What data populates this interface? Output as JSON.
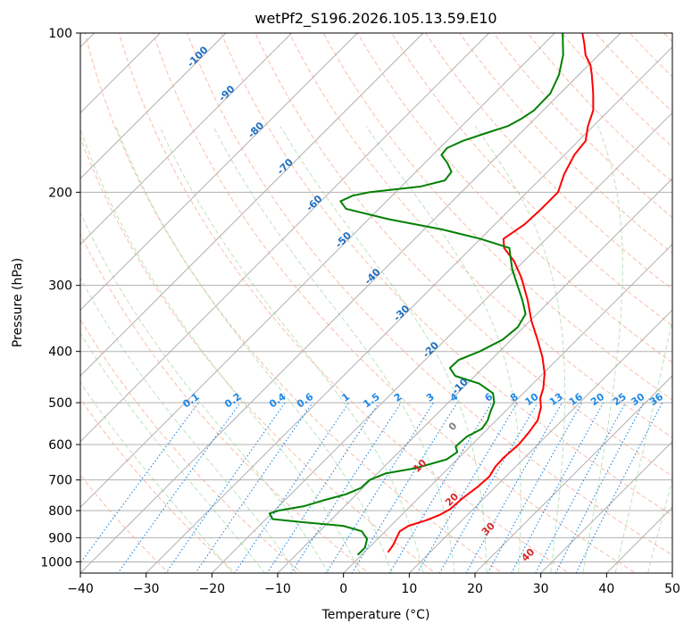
{
  "chart_data": {
    "type": "line",
    "subtype": "skew-t-log-p",
    "title": "wetPf2_S196.2026.105.13.59.E10",
    "xlabel": "Temperature (°C)",
    "ylabel": "Pressure (hPa)",
    "xlim": [
      -40,
      50
    ],
    "ylim_hPa": [
      1050,
      100
    ],
    "x_ticks": [
      -40,
      -30,
      -20,
      -10,
      0,
      10,
      20,
      30,
      40,
      50
    ],
    "y_ticks": [
      100,
      200,
      300,
      400,
      500,
      600,
      700,
      800,
      900,
      1000
    ],
    "series": [
      {
        "name": "Temperature",
        "color": "#ff0000",
        "points": [
          {
            "p": 959,
            "t": 3.6
          },
          {
            "p": 930,
            "t": 3.3
          },
          {
            "p": 900,
            "t": 2.7
          },
          {
            "p": 875,
            "t": 2.2
          },
          {
            "p": 855,
            "t": 2.7
          },
          {
            "p": 835,
            "t": 4.5
          },
          {
            "p": 815,
            "t": 5.8
          },
          {
            "p": 795,
            "t": 6.5
          },
          {
            "p": 760,
            "t": 6.7
          },
          {
            "p": 720,
            "t": 7.3
          },
          {
            "p": 690,
            "t": 7.5
          },
          {
            "p": 660,
            "t": 6.9
          },
          {
            "p": 635,
            "t": 6.8
          },
          {
            "p": 600,
            "t": 7.1
          },
          {
            "p": 570,
            "t": 6.8
          },
          {
            "p": 540,
            "t": 6.3
          },
          {
            "p": 510,
            "t": 4.8
          },
          {
            "p": 490,
            "t": 3.3
          },
          {
            "p": 470,
            "t": 2.3
          },
          {
            "p": 440,
            "t": 0.2
          },
          {
            "p": 410,
            "t": -2.6
          },
          {
            "p": 380,
            "t": -6.0
          },
          {
            "p": 350,
            "t": -9.8
          },
          {
            "p": 320,
            "t": -13.5
          },
          {
            "p": 290,
            "t": -17.9
          },
          {
            "p": 270,
            "t": -21.5
          },
          {
            "p": 255,
            "t": -25.0
          },
          {
            "p": 245,
            "t": -26.5
          },
          {
            "p": 230,
            "t": -25.5
          },
          {
            "p": 215,
            "t": -25.3
          },
          {
            "p": 200,
            "t": -25.3
          },
          {
            "p": 185,
            "t": -27.1
          },
          {
            "p": 170,
            "t": -28.5
          },
          {
            "p": 160,
            "t": -28.9
          },
          {
            "p": 150,
            "t": -30.8
          },
          {
            "p": 140,
            "t": -32.4
          },
          {
            "p": 130,
            "t": -35.0
          },
          {
            "p": 120,
            "t": -38.0
          },
          {
            "p": 115,
            "t": -39.7
          },
          {
            "p": 110,
            "t": -42.0
          },
          {
            "p": 105,
            "t": -43.8
          },
          {
            "p": 100,
            "t": -45.8
          }
        ]
      },
      {
        "name": "Dewpoint",
        "color": "#008000",
        "points": [
          {
            "p": 970,
            "t": -0.6
          },
          {
            "p": 940,
            "t": -0.6
          },
          {
            "p": 905,
            "t": -1.6
          },
          {
            "p": 875,
            "t": -3.6
          },
          {
            "p": 855,
            "t": -7.2
          },
          {
            "p": 840,
            "t": -14.5
          },
          {
            "p": 830,
            "t": -19.0
          },
          {
            "p": 810,
            "t": -20.3
          },
          {
            "p": 800,
            "t": -19.4
          },
          {
            "p": 785,
            "t": -16.2
          },
          {
            "p": 765,
            "t": -14.1
          },
          {
            "p": 745,
            "t": -11.6
          },
          {
            "p": 725,
            "t": -10.3
          },
          {
            "p": 700,
            "t": -10.2
          },
          {
            "p": 680,
            "t": -8.7
          },
          {
            "p": 665,
            "t": -5.0
          },
          {
            "p": 640,
            "t": -1.6
          },
          {
            "p": 620,
            "t": -1.1
          },
          {
            "p": 605,
            "t": -2.2
          },
          {
            "p": 580,
            "t": -2.0
          },
          {
            "p": 560,
            "t": -0.9
          },
          {
            "p": 540,
            "t": -1.3
          },
          {
            "p": 520,
            "t": -2.2
          },
          {
            "p": 500,
            "t": -3.0
          },
          {
            "p": 480,
            "t": -4.6
          },
          {
            "p": 460,
            "t": -8.2
          },
          {
            "p": 445,
            "t": -13.0
          },
          {
            "p": 430,
            "t": -15.0
          },
          {
            "p": 415,
            "t": -14.9
          },
          {
            "p": 400,
            "t": -13.0
          },
          {
            "p": 380,
            "t": -11.3
          },
          {
            "p": 360,
            "t": -10.9
          },
          {
            "p": 340,
            "t": -11.7
          },
          {
            "p": 320,
            "t": -14.3
          },
          {
            "p": 300,
            "t": -17.3
          },
          {
            "p": 280,
            "t": -20.5
          },
          {
            "p": 265,
            "t": -22.7
          },
          {
            "p": 255,
            "t": -24.2
          },
          {
            "p": 245,
            "t": -30.0
          },
          {
            "p": 235,
            "t": -37.4
          },
          {
            "p": 225,
            "t": -46.9
          },
          {
            "p": 215,
            "t": -55.0
          },
          {
            "p": 208,
            "t": -57.0
          },
          {
            "p": 203,
            "t": -56.0
          },
          {
            "p": 200,
            "t": -54.0
          },
          {
            "p": 195,
            "t": -47.0
          },
          {
            "p": 190,
            "t": -44.3
          },
          {
            "p": 183,
            "t": -44.6
          },
          {
            "p": 176,
            "t": -46.6
          },
          {
            "p": 170,
            "t": -48.7
          },
          {
            "p": 165,
            "t": -48.9
          },
          {
            "p": 160,
            "t": -47.6
          },
          {
            "p": 155,
            "t": -45.4
          },
          {
            "p": 150,
            "t": -43.0
          },
          {
            "p": 145,
            "t": -42.0
          },
          {
            "p": 140,
            "t": -41.4
          },
          {
            "p": 130,
            "t": -41.5
          },
          {
            "p": 120,
            "t": -43.0
          },
          {
            "p": 110,
            "t": -45.4
          },
          {
            "p": 100,
            "t": -48.8
          }
        ]
      }
    ],
    "dry_adiabat_labels": [
      -100,
      -90,
      -80,
      -70,
      -60,
      -50,
      -40,
      -30,
      -20,
      -10,
      0,
      10,
      20,
      30,
      40
    ],
    "mixing_ratio_labels": [
      "0.1",
      "0.2",
      "0.4",
      "0.6",
      "1",
      "1.5",
      "2",
      "3",
      "4",
      "6",
      "8",
      "10",
      "13",
      "16",
      "20",
      "25",
      "30",
      "36"
    ]
  }
}
